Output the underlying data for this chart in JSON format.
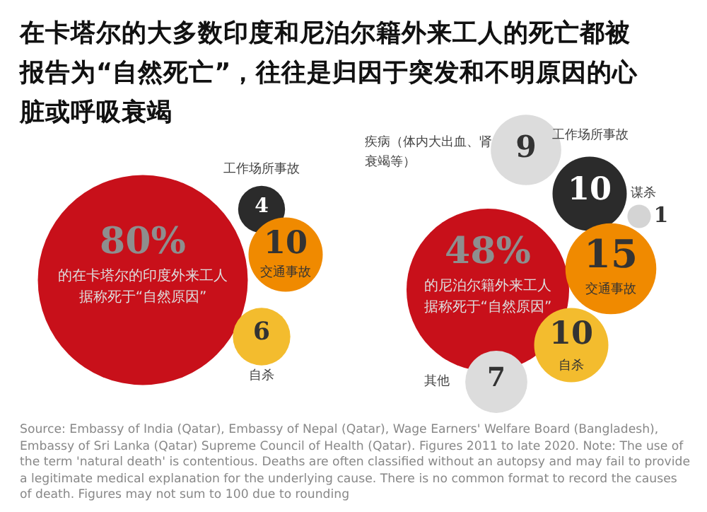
{
  "chart_data": [
    {
      "type": "other",
      "title": "在卡塔尔的大多数印度和尼泊尔籍外来工人的死亡都被报告为“自然死亡”，往往是归因于突发和不明原因的心脏或呼吸衰竭",
      "categories": [
        "的在卡塔尔的印度外来工人据称死于“自然原因”",
        "工作场所事故",
        "交通事故",
        "自杀"
      ],
      "values": [
        80,
        4,
        10,
        6
      ],
      "value_labels": [
        "80%",
        "4",
        "10",
        "6"
      ],
      "colors": [
        "#c8101a",
        "#2b2b2b",
        "#f08a00",
        "#f3bc2e"
      ]
    },
    {
      "type": "other",
      "categories": [
        "的尼泊尔籍外来工人据称死于“自然原因”",
        "疾病（体内大出血、肾衰竭等）",
        "工作场所事故",
        "谋杀",
        "交通事故",
        "自杀",
        "其他"
      ],
      "values": [
        48,
        9,
        10,
        1,
        15,
        10,
        7
      ],
      "value_labels": [
        "48%",
        "9",
        "10",
        "1",
        "15",
        "10",
        "7"
      ],
      "colors": [
        "#c8101a",
        "#dcdcdc",
        "#2b2b2b",
        "#d4d4d4",
        "#f08a00",
        "#f3bc2e",
        "#dcdcdc"
      ],
      "annotations": [
        "Source: Embassy of India (Qatar), Embassy of Nepal (Qatar), Wage Earners' Welfare Board (Bangladesh), Embassy of Sri Lanka (Qatar) Supreme Council of Health (Qatar). Figures 2011 to late 2020. Note: The use of the term 'natural death' is contentious. Deaths are often classified without an autopsy and may fail to provide a legitimate medical explanation for the underlying cause. There is no common format to record the causes of death. Figures may not sum to 100 due to rounding"
      ]
    }
  ]
}
